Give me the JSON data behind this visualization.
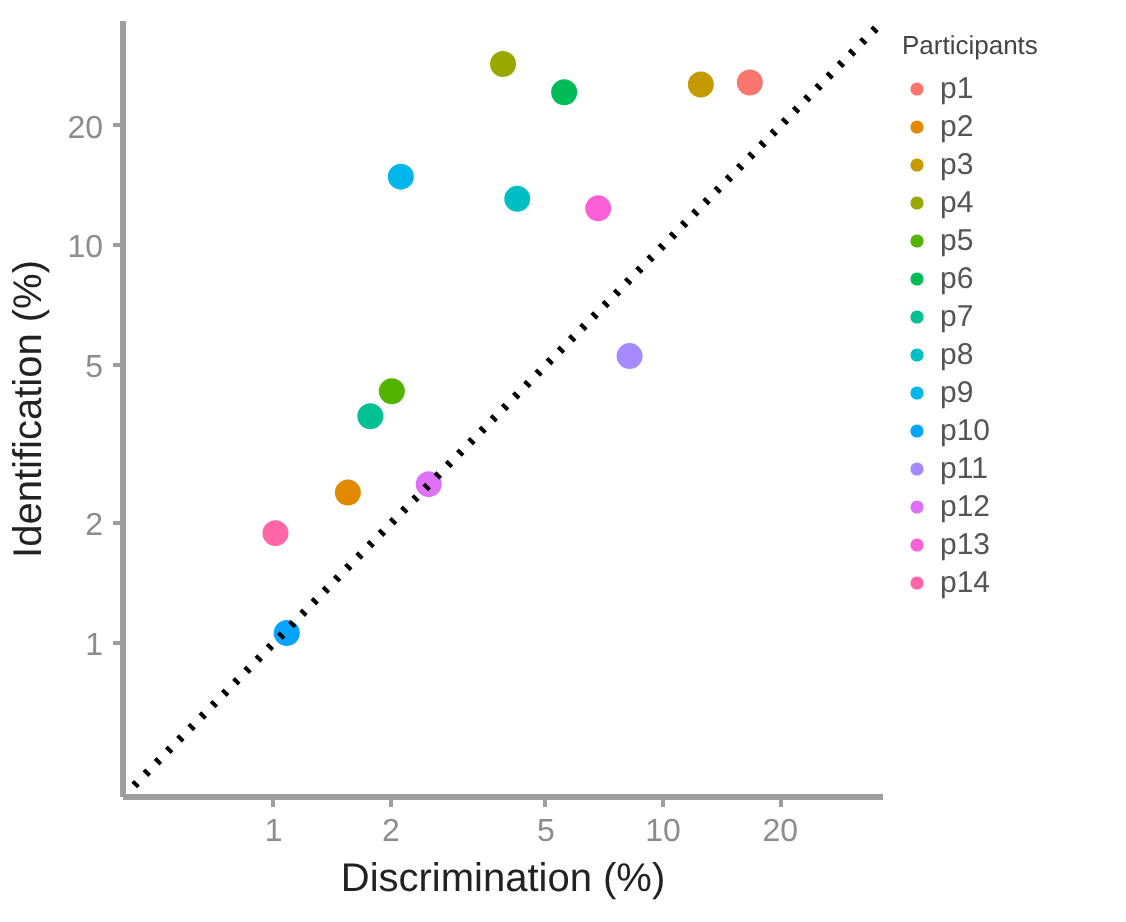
{
  "chart_data": {
    "type": "scatter",
    "xlabel": "Discrimination (%)",
    "ylabel": "Identification (%)",
    "legend_title": "Participants",
    "log": "xy",
    "xlim": [
      0.41,
      36.7
    ],
    "ylim": [
      0.41,
      36.7
    ],
    "xticks": [
      1,
      2,
      5,
      10,
      20
    ],
    "yticks": [
      1,
      2,
      5,
      10,
      20
    ],
    "grid": false,
    "legend": "right",
    "marker": "circle",
    "series": [
      {
        "name": "p1",
        "color": "#f8766d",
        "x": [
          16.7
        ],
        "values": [
          25.7
        ]
      },
      {
        "name": "p2",
        "color": "#e38900",
        "x": [
          1.55
        ],
        "values": [
          2.39
        ]
      },
      {
        "name": "p3",
        "color": "#c49a00",
        "x": [
          12.5
        ],
        "values": [
          25.4
        ]
      },
      {
        "name": "p4",
        "color": "#99a800",
        "x": [
          3.88
        ],
        "values": [
          28.6
        ]
      },
      {
        "name": "p5",
        "color": "#53b400",
        "x": [
          2.01
        ],
        "values": [
          4.3
        ]
      },
      {
        "name": "p6",
        "color": "#00bc56",
        "x": [
          5.57
        ],
        "values": [
          24.3
        ]
      },
      {
        "name": "p7",
        "color": "#00c094",
        "x": [
          1.77
        ],
        "values": [
          3.72
        ]
      },
      {
        "name": "p8",
        "color": "#00bfc4",
        "x": [
          4.22
        ],
        "values": [
          13.1
        ]
      },
      {
        "name": "p9",
        "color": "#00b6eb",
        "x": [
          2.12
        ],
        "values": [
          14.9
        ]
      },
      {
        "name": "p10",
        "color": "#06a4ff",
        "x": [
          1.08
        ],
        "values": [
          1.06
        ]
      },
      {
        "name": "p11",
        "color": "#a58aff",
        "x": [
          8.2
        ],
        "values": [
          5.27
        ]
      },
      {
        "name": "p12",
        "color": "#df70f8",
        "x": [
          2.5
        ],
        "values": [
          2.51
        ]
      },
      {
        "name": "p13",
        "color": "#fb61d7",
        "x": [
          6.81
        ],
        "values": [
          12.4
        ]
      },
      {
        "name": "p14",
        "color": "#ff66a8",
        "x": [
          1.01
        ],
        "values": [
          1.89
        ]
      },
      {
        "type": "line",
        "color": "#000000",
        "line_style": "dotted",
        "marker": "none",
        "x": [
          0.41,
          36.7
        ],
        "values": [
          0.41,
          36.7
        ]
      }
    ]
  }
}
